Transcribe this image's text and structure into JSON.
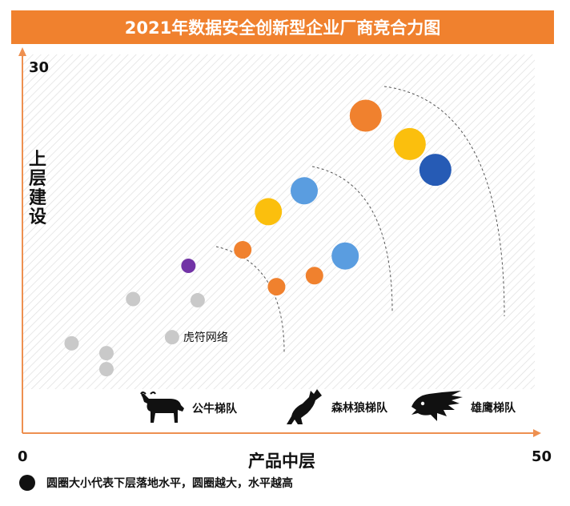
{
  "chart_data": {
    "type": "scatter",
    "title": "2021年数据安全创新型企业厂商竞合力图",
    "xlabel": "产品中层",
    "ylabel": "上层建设",
    "xlim": [
      0,
      50
    ],
    "ylim": [
      0,
      30
    ],
    "x_ticks": [
      "0",
      "50"
    ],
    "y_ticks": [
      "30"
    ],
    "grid": "hatched background",
    "points": [
      {
        "x": 33.5,
        "y": 25.8,
        "color": "orange",
        "size": 3,
        "label": ""
      },
      {
        "x": 37.8,
        "y": 23.5,
        "color": "yellow",
        "size": 3,
        "label": ""
      },
      {
        "x": 40.3,
        "y": 21.4,
        "color": "darkblue",
        "size": 3,
        "label": ""
      },
      {
        "x": 27.5,
        "y": 19.7,
        "color": "blue",
        "size": 2,
        "label": ""
      },
      {
        "x": 24.0,
        "y": 18.0,
        "color": "yellow",
        "size": 2,
        "label": ""
      },
      {
        "x": 21.5,
        "y": 14.9,
        "color": "orange",
        "size": 1,
        "label": ""
      },
      {
        "x": 31.5,
        "y": 14.4,
        "color": "blue",
        "size": 2,
        "label": ""
      },
      {
        "x": 28.5,
        "y": 12.8,
        "color": "orange",
        "size": 1,
        "label": ""
      },
      {
        "x": 24.8,
        "y": 11.9,
        "color": "orange",
        "size": 1,
        "label": ""
      },
      {
        "x": 16.2,
        "y": 13.6,
        "color": "purple",
        "size": 0,
        "label": ""
      },
      {
        "x": 10.8,
        "y": 10.9,
        "color": "gray",
        "size": 0,
        "label": ""
      },
      {
        "x": 17.1,
        "y": 10.8,
        "color": "gray",
        "size": 0,
        "label": ""
      },
      {
        "x": 14.6,
        "y": 7.8,
        "color": "gray",
        "size": 0,
        "label": "虎符网络"
      },
      {
        "x": 4.8,
        "y": 7.3,
        "color": "gray",
        "size": 0,
        "label": ""
      },
      {
        "x": 8.2,
        "y": 6.5,
        "color": "gray",
        "size": 0,
        "label": ""
      },
      {
        "x": 8.2,
        "y": 5.2,
        "color": "gray",
        "size": 0,
        "label": ""
      }
    ],
    "legend": [
      "公牛梯队",
      "森林狼梯队",
      "雄鹰梯队"
    ],
    "legend_placement": "bottom-right",
    "note": "圆圈大小代表下层落地水平，圆圈越大，水平越高"
  },
  "colors": {
    "orange": "#f0812e",
    "yellow": "#fbbf0d",
    "darkblue": "#265bb5",
    "blue": "#5a9de0",
    "purple": "#7233a6",
    "gray": "#c9c9c9",
    "axis": "#ee9050"
  },
  "icons": [
    "bull-icon",
    "wolf-icon",
    "eagle-icon"
  ]
}
